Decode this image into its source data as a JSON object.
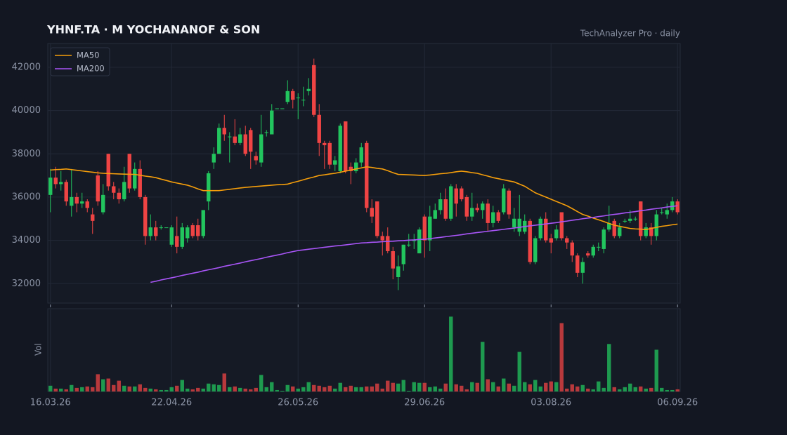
{
  "chart_data": {
    "type": "candlestick",
    "title": "YHNF.TA  ·  M YOCHANANOF & SON",
    "subtitle": "TechAnalyzer Pro · daily",
    "volume_label": "Vol",
    "up_color": "#22c55e",
    "down_color": "#ef4444",
    "grid": true,
    "legend": "upper left",
    "ylim": [
      31100,
      43100
    ],
    "yticks": [
      32000,
      34000,
      36000,
      38000,
      40000,
      42000
    ],
    "volume_ylim": [
      0,
      115
    ],
    "categories": [
      "16.03.26",
      null,
      null,
      null,
      null,
      null,
      null,
      null,
      null,
      null,
      null,
      null,
      null,
      null,
      null,
      null,
      null,
      null,
      null,
      null,
      null,
      null,
      null,
      "22.04.26",
      null,
      null,
      null,
      null,
      null,
      null,
      null,
      null,
      null,
      null,
      null,
      null,
      null,
      null,
      null,
      null,
      null,
      null,
      null,
      null,
      null,
      null,
      null,
      "26.05.26",
      null,
      null,
      null,
      null,
      null,
      null,
      null,
      null,
      null,
      null,
      null,
      null,
      null,
      null,
      null,
      null,
      null,
      null,
      null,
      null,
      null,
      null,
      null,
      "29.06.26",
      null,
      null,
      null,
      null,
      null,
      null,
      null,
      null,
      null,
      null,
      null,
      null,
      null,
      null,
      null,
      null,
      null,
      null,
      null,
      null,
      null,
      null,
      null,
      "03.08.26",
      null,
      null,
      null,
      null,
      null,
      null,
      null,
      null,
      null,
      null,
      null,
      null,
      null,
      null,
      null,
      null,
      null,
      null,
      null,
      null,
      null,
      null,
      null,
      "06.09.26"
    ],
    "open": [
      36100,
      36900,
      36600,
      36700,
      35600,
      36000,
      35700,
      35800,
      35200,
      37000,
      35300,
      38000,
      36500,
      36200,
      35900,
      38000,
      36400,
      37300,
      36000,
      34200,
      34600,
      34600,
      34600,
      33800,
      34200,
      33700,
      34100,
      34700,
      34700,
      34200,
      35800,
      37600,
      38000,
      39200,
      38800,
      38800,
      38500,
      38900,
      39100,
      37900,
      37600,
      39000,
      38900,
      40100,
      40100,
      40400,
      40900,
      40600,
      40500,
      40900,
      42100,
      39800,
      38500,
      38500,
      37500,
      37200,
      39500,
      37400,
      37200,
      37600,
      38500,
      35500,
      35800,
      34200,
      34200,
      33500,
      32300,
      32900,
      33800,
      34000,
      33400,
      35100,
      34000,
      35000,
      35400,
      35900,
      35000,
      36400,
      36400,
      36000,
      35100,
      35500,
      35400,
      35700,
      34800,
      35300,
      35300,
      36300,
      34600,
      34400,
      34400,
      34900,
      33000,
      34100,
      35000,
      34100,
      34100,
      35300,
      34100,
      33900,
      33300,
      32500,
      33400,
      33300,
      33700,
      33600,
      34500,
      34900,
      34200,
      34900,
      34900,
      35000,
      35800,
      34200,
      34600,
      34200,
      35300,
      35200,
      35400,
      35800
    ],
    "high": [
      37300,
      37400,
      37200,
      36800,
      37300,
      36200,
      36200,
      35900,
      35500,
      37200,
      36600,
      38000,
      36700,
      36400,
      37400,
      38000,
      37600,
      37700,
      36100,
      35200,
      34900,
      34700,
      34600,
      34700,
      35100,
      34800,
      34700,
      34800,
      35000,
      35400,
      37200,
      38300,
      39400,
      39800,
      39000,
      39600,
      39200,
      39300,
      39200,
      38100,
      39800,
      39100,
      40300,
      40100,
      40100,
      41400,
      41000,
      40800,
      41100,
      41500,
      42400,
      40300,
      38600,
      38600,
      37900,
      39400,
      39500,
      37600,
      37800,
      38500,
      38600,
      35900,
      35800,
      34400,
      34600,
      33700,
      33300,
      33800,
      34300,
      34300,
      34600,
      35200,
      35600,
      35700,
      36200,
      36400,
      36600,
      36600,
      36500,
      36100,
      36200,
      35700,
      35800,
      35900,
      35600,
      35400,
      36600,
      36400,
      35500,
      36100,
      35200,
      35000,
      34200,
      35100,
      35300,
      34300,
      34700,
      35300,
      34200,
      34000,
      33400,
      33200,
      33500,
      33800,
      33900,
      34600,
      35600,
      35000,
      34800,
      35000,
      35400,
      35100,
      35800,
      34800,
      34800,
      35400,
      35500,
      35700,
      36000,
      35900
    ],
    "low": [
      35300,
      36400,
      36300,
      35600,
      35100,
      35300,
      35500,
      35300,
      34300,
      35600,
      35200,
      36300,
      35900,
      35700,
      35800,
      36200,
      36300,
      35900,
      33800,
      34000,
      34000,
      34500,
      34600,
      33700,
      33400,
      33600,
      33900,
      34100,
      34000,
      34100,
      35400,
      37300,
      38000,
      38600,
      37600,
      38400,
      38400,
      37900,
      37300,
      37500,
      37400,
      38800,
      38900,
      40100,
      40100,
      40300,
      40100,
      39600,
      40200,
      40700,
      39700,
      37900,
      37300,
      37300,
      37200,
      37100,
      37100,
      36600,
      37100,
      37400,
      35300,
      34800,
      34100,
      33300,
      33400,
      32200,
      31700,
      32600,
      33700,
      33600,
      33400,
      33200,
      33500,
      35000,
      35200,
      34900,
      34900,
      35100,
      35800,
      34900,
      34900,
      35300,
      35000,
      34400,
      34600,
      34800,
      35200,
      35000,
      34400,
      34200,
      34300,
      32900,
      32900,
      34000,
      33900,
      33400,
      34000,
      34000,
      33600,
      33000,
      32300,
      32000,
      33200,
      33200,
      33500,
      33400,
      34400,
      34100,
      34100,
      34800,
      34800,
      34900,
      34000,
      34100,
      33800,
      34000,
      35200,
      35000,
      35300,
      35200
    ],
    "close": [
      36900,
      36600,
      36700,
      35800,
      36000,
      35700,
      35800,
      35500,
      34900,
      35800,
      36100,
      36500,
      36200,
      35900,
      36700,
      36400,
      37300,
      36000,
      34200,
      34600,
      34200,
      34600,
      34600,
      34600,
      33700,
      34600,
      34600,
      34200,
      34200,
      35400,
      37100,
      38000,
      39200,
      38900,
      38800,
      38500,
      38900,
      38000,
      38100,
      37700,
      38900,
      39000,
      40000,
      40100,
      40100,
      40900,
      40500,
      40600,
      40500,
      41000,
      39800,
      38500,
      38400,
      37500,
      37700,
      39300,
      37200,
      37200,
      37600,
      38300,
      35500,
      35100,
      34200,
      34000,
      33500,
      32700,
      32800,
      33800,
      33800,
      34000,
      34500,
      34000,
      35100,
      35400,
      35900,
      35000,
      36500,
      35700,
      35900,
      35100,
      35500,
      35400,
      35700,
      34800,
      35300,
      34900,
      36400,
      35200,
      35000,
      35000,
      34900,
      33000,
      34100,
      35000,
      34000,
      33900,
      34500,
      34100,
      33900,
      33300,
      32500,
      33000,
      33300,
      33700,
      33700,
      34500,
      34800,
      34200,
      34600,
      34900,
      35000,
      35000,
      34200,
      34600,
      34200,
      35200,
      35300,
      35400,
      35800,
      35300
    ],
    "volume": [
      8,
      4,
      4,
      3,
      9,
      5,
      6,
      7,
      6,
      24,
      17,
      18,
      9,
      15,
      8,
      7,
      7,
      10,
      5,
      4,
      3,
      2,
      2,
      6,
      8,
      16,
      4,
      3,
      5,
      4,
      11,
      10,
      9,
      25,
      6,
      7,
      5,
      4,
      3,
      5,
      23,
      6,
      13,
      2,
      1,
      9,
      7,
      4,
      6,
      13,
      9,
      8,
      6,
      8,
      4,
      12,
      6,
      8,
      6,
      6,
      7,
      7,
      11,
      4,
      15,
      12,
      11,
      16,
      1,
      13,
      12,
      12,
      6,
      7,
      4,
      11,
      104,
      10,
      8,
      3,
      13,
      12,
      69,
      17,
      13,
      7,
      18,
      11,
      8,
      55,
      13,
      10,
      16,
      7,
      12,
      14,
      13,
      95,
      4,
      10,
      7,
      9,
      4,
      3,
      14,
      5,
      66,
      6,
      3,
      6,
      11,
      6,
      7,
      4,
      5,
      58,
      5,
      2,
      2,
      3
    ],
    "series": [
      {
        "name": "MA50",
        "color": "#f59e0b",
        "values": [
          37250,
          37270,
          37280,
          37300,
          37270,
          37240,
          37210,
          37180,
          37150,
          37120,
          37100,
          37090,
          37080,
          37070,
          37060,
          37055,
          37050,
          37010,
          36970,
          36940,
          36900,
          36830,
          36770,
          36700,
          36650,
          36600,
          36550,
          36470,
          36380,
          36300,
          36300,
          36300,
          36300,
          36330,
          36360,
          36390,
          36420,
          36450,
          36470,
          36490,
          36510,
          36530,
          36550,
          36570,
          36580,
          36600,
          36670,
          36730,
          36800,
          36870,
          36930,
          37000,
          37030,
          37070,
          37100,
          37150,
          37200,
          37250,
          37300,
          37350,
          37400,
          37370,
          37330,
          37300,
          37220,
          37130,
          37050,
          37040,
          37030,
          37020,
          37010,
          37000,
          37020,
          37050,
          37080,
          37100,
          37130,
          37170,
          37200,
          37170,
          37130,
          37100,
          37030,
          36970,
          36900,
          36850,
          36800,
          36750,
          36700,
          36600,
          36500,
          36350,
          36200,
          36100,
          36000,
          35900,
          35800,
          35700,
          35600,
          35470,
          35330,
          35200,
          35120,
          35030,
          34950,
          34870,
          34780,
          34700,
          34650,
          34600,
          34550,
          34530,
          34520,
          34500,
          34550,
          34600,
          34650,
          34680,
          34720,
          34750
        ]
      },
      {
        "name": "MA200",
        "color": "#a855f7",
        "values": [
          null,
          null,
          null,
          null,
          null,
          null,
          null,
          null,
          null,
          null,
          null,
          null,
          null,
          null,
          null,
          null,
          null,
          null,
          null,
          32060,
          32110,
          32170,
          32220,
          32270,
          32320,
          32380,
          32430,
          32480,
          32530,
          32590,
          32640,
          32690,
          32740,
          32800,
          32850,
          32900,
          32950,
          33010,
          33060,
          33110,
          33160,
          33220,
          33270,
          33320,
          33370,
          33430,
          33480,
          33530,
          33560,
          33590,
          33620,
          33650,
          33680,
          33710,
          33740,
          33760,
          33790,
          33820,
          33850,
          33880,
          33890,
          33910,
          33920,
          33940,
          33950,
          33960,
          33980,
          33990,
          34010,
          34020,
          34040,
          34050,
          34080,
          34110,
          34140,
          34170,
          34200,
          34230,
          34260,
          34300,
          34330,
          34360,
          34390,
          34420,
          34450,
          34480,
          34510,
          34540,
          34570,
          34600,
          34640,
          34670,
          34700,
          34730,
          34760,
          34790,
          34820,
          34860,
          34890,
          34930,
          34960,
          35000,
          35030,
          35060,
          35100,
          35130,
          35170,
          35200,
          35230,
          35270,
          35300,
          35330,
          35370,
          35400,
          35440,
          35470,
          35500,
          35540,
          35570,
          35600
        ]
      }
    ]
  }
}
